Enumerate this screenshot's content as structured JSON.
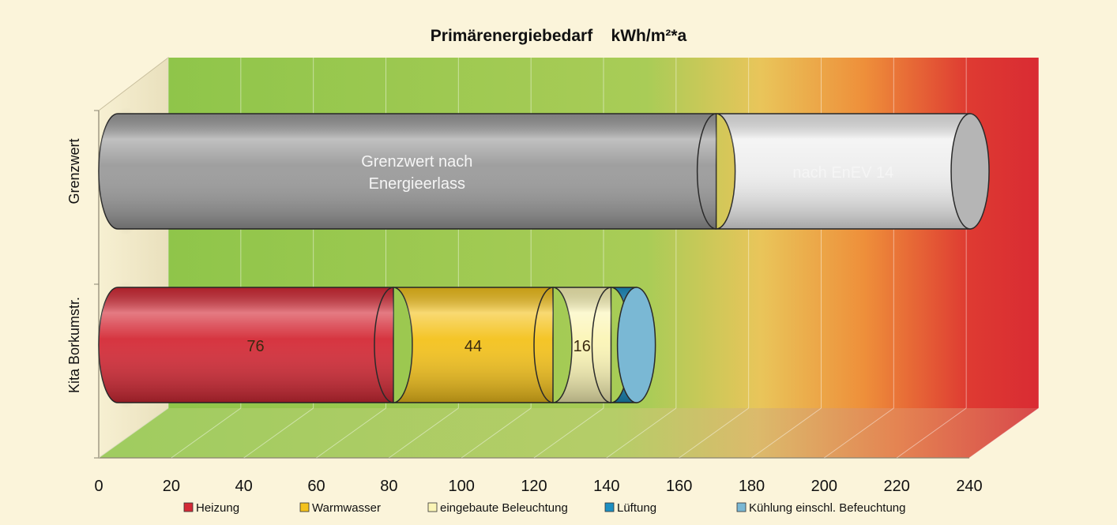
{
  "chart_data": {
    "type": "bar",
    "orientation": "horizontal",
    "stacked": true,
    "style": "3d-cylinder",
    "title": "Primärenergiebedarf    kWh/m²*a",
    "xlim": [
      0,
      240
    ],
    "x_ticks": [
      "0",
      "20",
      "40",
      "60",
      "80",
      "100",
      "120",
      "140",
      "160",
      "180",
      "200",
      "220",
      "240"
    ],
    "grid": true,
    "legend_position": "bottom",
    "categories": [
      "Grenzwert",
      "Kita Borkumstr."
    ],
    "bars": [
      {
        "category": "Grenzwert",
        "segments": [
          {
            "label_lines": [
              "Grenzwert nach",
              "Energieerlass"
            ],
            "value": 165,
            "color": "#9a9a9a"
          },
          {
            "label_lines": [
              "nach EnEV 14"
            ],
            "value": 70,
            "color": "#eeeeee"
          }
        ]
      },
      {
        "category": "Kita Borkumstr.",
        "segments": [
          {
            "series": "Heizung",
            "label": "76",
            "value": 76,
            "color": "#d42a36"
          },
          {
            "series": "Warmwasser",
            "label": "44",
            "value": 44,
            "color": "#f4c21c"
          },
          {
            "series": "eingebaute Beleuchtung",
            "label": "16",
            "value": 16,
            "color": "#fbf5b6"
          },
          {
            "series": "Lüftung",
            "label": "7",
            "value": 7,
            "color": "#1d8fc2"
          },
          {
            "series": "Kühlung einschl. Befeuchtung",
            "label": "",
            "value": 0,
            "color": "#7ab8d4"
          }
        ]
      }
    ],
    "legend": [
      {
        "name": "Heizung",
        "color": "#d42a36"
      },
      {
        "name": "Warmwasser",
        "color": "#f4c21c"
      },
      {
        "name": "eingebaute Beleuchtung",
        "color": "#fbf5b6"
      },
      {
        "name": "Lüftung",
        "color": "#1d8fc2"
      },
      {
        "name": "Kühlung einschl. Befeuchtung",
        "color": "#7ab8d4"
      }
    ]
  }
}
